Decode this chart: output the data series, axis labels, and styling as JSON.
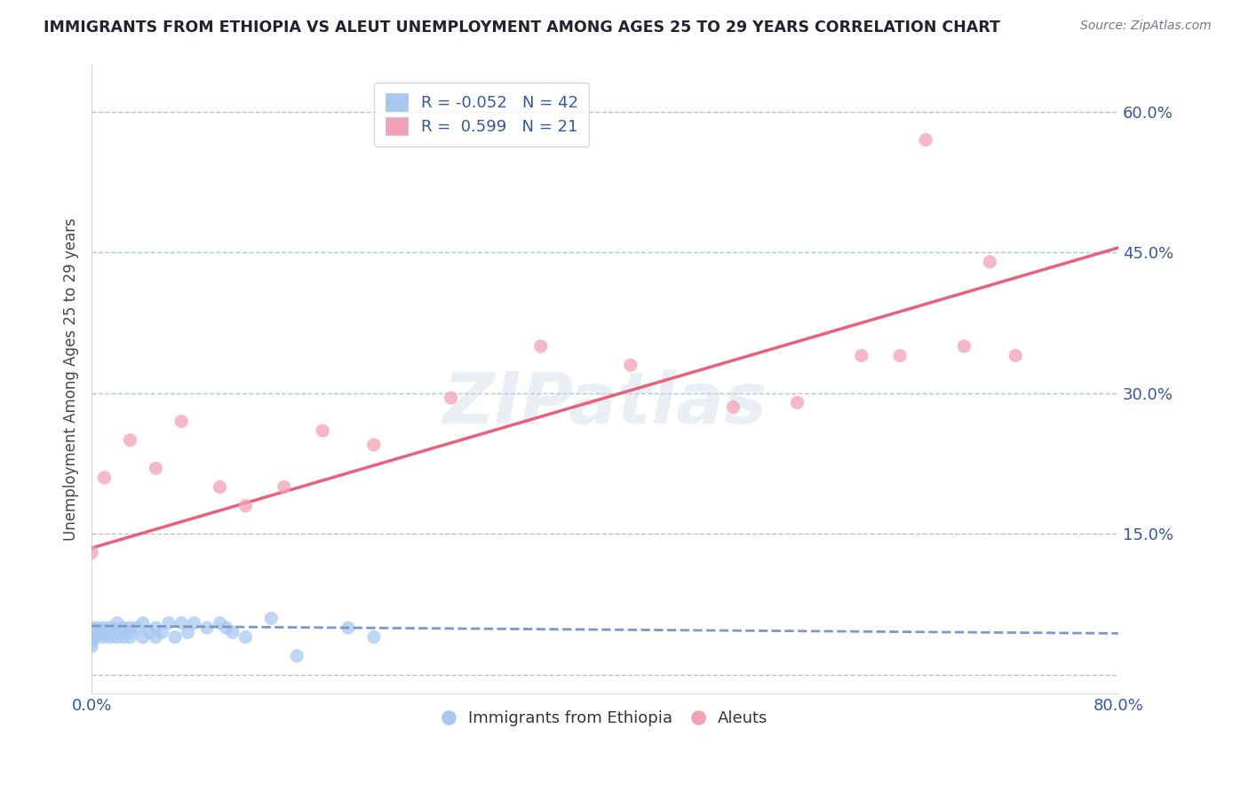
{
  "title": "IMMIGRANTS FROM ETHIOPIA VS ALEUT UNEMPLOYMENT AMONG AGES 25 TO 29 YEARS CORRELATION CHART",
  "source_text": "Source: ZipAtlas.com",
  "ylabel": "Unemployment Among Ages 25 to 29 years",
  "xlim": [
    0.0,
    0.8
  ],
  "ylim": [
    -0.02,
    0.65
  ],
  "xticks": [
    0.0,
    0.1,
    0.2,
    0.3,
    0.4,
    0.5,
    0.6,
    0.7,
    0.8
  ],
  "ytick_vals": [
    0.0,
    0.15,
    0.3,
    0.45,
    0.6
  ],
  "ytick_labels": [
    "",
    "15.0%",
    "30.0%",
    "45.0%",
    "60.0%"
  ],
  "legend_R_blue": "-0.052",
  "legend_N_blue": "42",
  "legend_R_pink": "0.599",
  "legend_N_pink": "21",
  "blue_color": "#a8c8f0",
  "pink_color": "#f4a0b5",
  "blue_line_color": "#7799cc",
  "pink_line_color": "#e8607a",
  "axis_color": "#3355aa",
  "title_color": "#222233",
  "ylabel_color": "#444455",
  "watermark_text": "ZIPatlas",
  "legend_label_blue": "Immigrants from Ethiopia",
  "legend_label_pink": "Aleuts",
  "blue_scatter_x": [
    0.0,
    0.0,
    0.0,
    0.0,
    0.0,
    0.0,
    0.005,
    0.005,
    0.01,
    0.01,
    0.01,
    0.015,
    0.015,
    0.02,
    0.02,
    0.02,
    0.025,
    0.025,
    0.03,
    0.03,
    0.03,
    0.035,
    0.04,
    0.04,
    0.045,
    0.05,
    0.05,
    0.055,
    0.06,
    0.065,
    0.07,
    0.075,
    0.08,
    0.09,
    0.1,
    0.105,
    0.11,
    0.12,
    0.14,
    0.16,
    0.2,
    0.22
  ],
  "blue_scatter_y": [
    0.03,
    0.035,
    0.04,
    0.04,
    0.045,
    0.05,
    0.04,
    0.05,
    0.04,
    0.045,
    0.05,
    0.04,
    0.05,
    0.04,
    0.045,
    0.055,
    0.04,
    0.05,
    0.04,
    0.045,
    0.05,
    0.05,
    0.04,
    0.055,
    0.045,
    0.04,
    0.05,
    0.045,
    0.055,
    0.04,
    0.055,
    0.045,
    0.055,
    0.05,
    0.055,
    0.05,
    0.045,
    0.04,
    0.06,
    0.02,
    0.05,
    0.04
  ],
  "pink_scatter_x": [
    0.0,
    0.01,
    0.03,
    0.05,
    0.07,
    0.1,
    0.12,
    0.15,
    0.18,
    0.22,
    0.28,
    0.35,
    0.42,
    0.5,
    0.55,
    0.6,
    0.63,
    0.65,
    0.68,
    0.7,
    0.72
  ],
  "pink_scatter_y": [
    0.13,
    0.21,
    0.25,
    0.22,
    0.27,
    0.2,
    0.18,
    0.2,
    0.26,
    0.245,
    0.295,
    0.35,
    0.33,
    0.285,
    0.29,
    0.34,
    0.34,
    0.57,
    0.35,
    0.44,
    0.34
  ],
  "blue_line_x": [
    0.0,
    0.8
  ],
  "blue_line_y": [
    0.052,
    0.044
  ],
  "pink_line_x": [
    0.0,
    0.8
  ],
  "pink_line_y": [
    0.135,
    0.455
  ]
}
